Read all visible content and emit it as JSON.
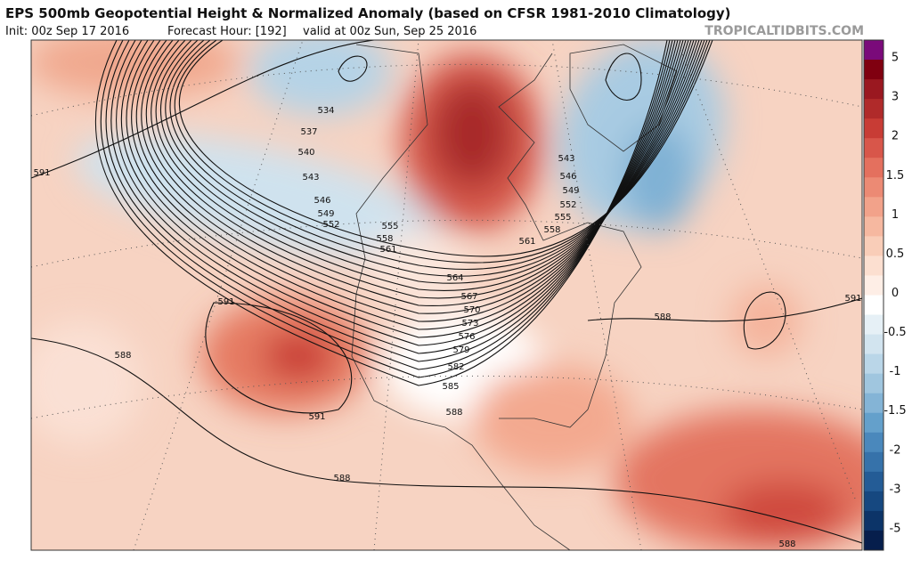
{
  "header": {
    "title": "EPS 500mb Geopotential Height & Normalized Anomaly (based on CFSR 1981-2010 Climatology)",
    "init": "Init: 00z Sep 17 2016",
    "forecast_hour": "Forecast Hour: [192]",
    "valid": "valid at 00z Sun, Sep 25 2016",
    "source": "TROPICALTIDBITS.COM"
  },
  "colorbar": {
    "labels": [
      "5",
      "3",
      "2",
      "1.5",
      "1",
      "0.5",
      "0",
      "-0.5",
      "-1",
      "-1.5",
      "-2",
      "-3",
      "-5"
    ],
    "colors": [
      "#7a0a7a",
      "#800010",
      "#9a1820",
      "#b02a2a",
      "#c83c35",
      "#d8564a",
      "#e4705e",
      "#ec8a74",
      "#f2a28a",
      "#f6b8a0",
      "#f9cdb8",
      "#fcdfd0",
      "#feeee6",
      "#ffffff",
      "#e6f0f6",
      "#d2e4ef",
      "#bad6e8",
      "#a0c6df",
      "#84b4d6",
      "#64a0cb",
      "#4a88bc",
      "#3672aa",
      "#245c96",
      "#164880",
      "#0c3468",
      "#061e4c"
    ]
  },
  "contour_labels": [
    "534",
    "537",
    "540",
    "543",
    "546",
    "549",
    "552",
    "555",
    "558",
    "561",
    "591",
    "564",
    "567",
    "570",
    "573",
    "576",
    "579",
    "582",
    "585",
    "588",
    "591",
    "588",
    "591",
    "588",
    "543",
    "546",
    "549",
    "552",
    "555",
    "558",
    "561",
    "588",
    "591",
    "588"
  ]
}
